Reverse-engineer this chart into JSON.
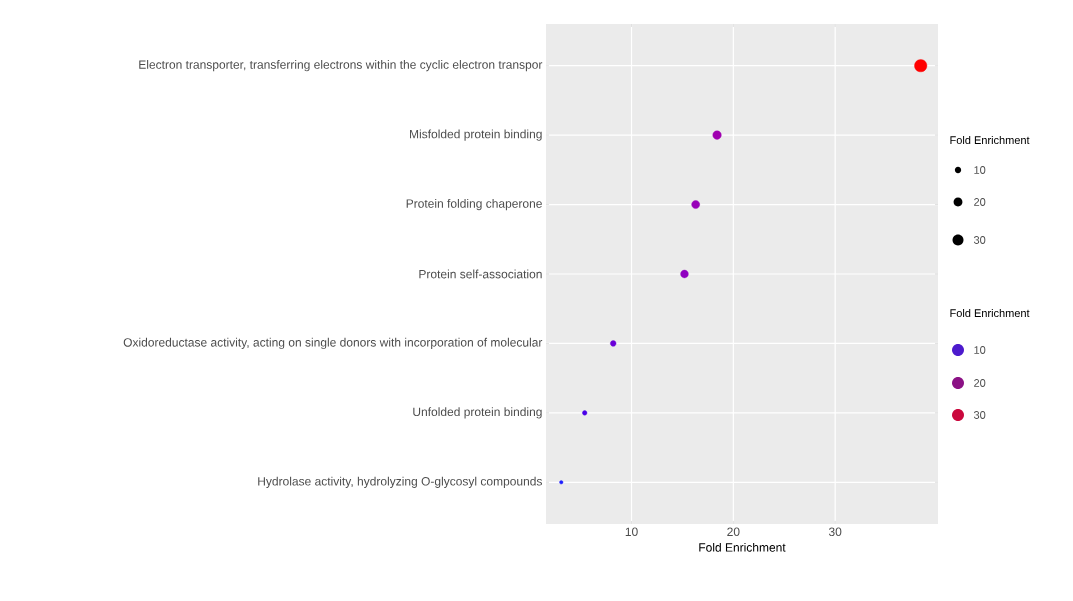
{
  "chart_data": {
    "type": "scatter",
    "orientation": "horizontal",
    "categories": [
      "Electron transporter, transferring electrons within the cyclic electron transpor",
      "Misfolded protein binding",
      "Protein folding chaperone",
      "Protein self-association",
      "Oxidoreductase activity, acting on single donors with incorporation of molecular",
      "Unfolded protein binding",
      "Hydrolase activity, hydrolyzing O-glycosyl compounds"
    ],
    "values": [
      38.4,
      18.4,
      16.3,
      15.2,
      8.2,
      5.4,
      3.1
    ],
    "sizes": [
      38.4,
      18.4,
      16.3,
      15.2,
      8.2,
      5.4,
      3.1
    ],
    "colors": [
      "#ff0000",
      "#a000b0",
      "#9800b8",
      "#9000c0",
      "#6a00d8",
      "#4a00e8",
      "#2020ff"
    ],
    "size_legend": [
      10,
      20,
      30
    ],
    "legend_title": "Fold Enrichment",
    "clabel": "Fold Enrichment",
    "annotations": [
      "10",
      "20",
      "30"
    ],
    "xlabel": "Fold Enrichment",
    "xlim": [
      1.6,
      40.1
    ],
    "xticks": [
      10,
      20,
      30
    ],
    "grid": true,
    "marker": "circle"
  }
}
